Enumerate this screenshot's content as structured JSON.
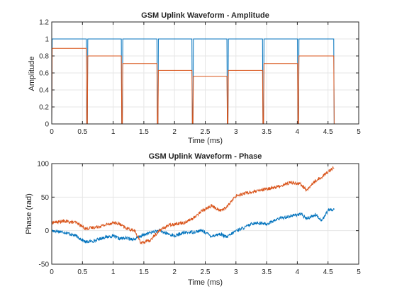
{
  "chart_data": [
    {
      "type": "line",
      "title": "GSM Uplink Waveform - Amplitude",
      "xlabel": "Time (ms)",
      "ylabel": "Amplitude",
      "xlim": [
        0,
        5
      ],
      "ylim": [
        0,
        1.2
      ],
      "xticks": [
        "0",
        "0.5",
        "1",
        "1.5",
        "2",
        "2.5",
        "3",
        "3.5",
        "4",
        "4.5",
        "5"
      ],
      "yticks": [
        "0",
        "0.2",
        "0.4",
        "0.6",
        "0.8",
        "1",
        "1.2"
      ],
      "grid": true,
      "bursts_ms": [
        [
          0.0,
          0.57
        ],
        [
          0.58,
          1.14
        ],
        [
          1.15,
          1.72
        ],
        [
          1.73,
          2.29
        ],
        [
          2.3,
          2.86
        ],
        [
          2.87,
          3.44
        ],
        [
          3.45,
          4.01
        ],
        [
          4.02,
          4.6
        ]
      ],
      "series": [
        {
          "color": "#0072BD",
          "level_per_burst": [
            1.0,
            1.0,
            1.0,
            1.0,
            1.0,
            1.0,
            1.0,
            1.0
          ]
        },
        {
          "color": "#D95319",
          "level_per_burst": [
            0.89,
            0.8,
            0.71,
            0.63,
            0.56,
            0.63,
            0.71,
            0.8
          ]
        }
      ]
    },
    {
      "type": "line",
      "title": "GSM Uplink Waveform - Phase",
      "xlabel": "Time (ms)",
      "ylabel": "Phase (rad)",
      "xlim": [
        0,
        5
      ],
      "ylim": [
        -50,
        100
      ],
      "xticks": [
        "0",
        "0.5",
        "1",
        "1.5",
        "2",
        "2.5",
        "3",
        "3.5",
        "4",
        "4.5",
        "5"
      ],
      "yticks": [
        "-50",
        "0",
        "50",
        "100"
      ],
      "grid": true,
      "series": [
        {
          "color": "#0072BD",
          "x": [
            0,
            0.2,
            0.4,
            0.55,
            0.7,
            0.85,
            1.0,
            1.1,
            1.2,
            1.35,
            1.45,
            1.6,
            1.75,
            1.9,
            2.0,
            2.15,
            2.3,
            2.45,
            2.6,
            2.75,
            2.85,
            3.0,
            3.15,
            3.3,
            3.5,
            3.7,
            3.9,
            4.05,
            4.15,
            4.3,
            4.4,
            4.5,
            4.6
          ],
          "y": [
            0,
            -2,
            -8,
            -17,
            -15,
            -10,
            -8,
            -12,
            -11,
            -13,
            -8,
            -3,
            0,
            -5,
            -8,
            -3,
            -2,
            0,
            -8,
            -5,
            -10,
            0,
            5,
            12,
            10,
            18,
            22,
            25,
            18,
            24,
            15,
            30,
            32
          ]
        },
        {
          "color": "#D95319",
          "x": [
            0,
            0.2,
            0.4,
            0.55,
            0.7,
            0.85,
            1.0,
            1.1,
            1.2,
            1.35,
            1.45,
            1.6,
            1.75,
            1.9,
            2.0,
            2.15,
            2.3,
            2.45,
            2.6,
            2.75,
            2.85,
            3.0,
            3.15,
            3.3,
            3.5,
            3.7,
            3.9,
            4.05,
            4.15,
            4.3,
            4.4,
            4.5,
            4.6
          ],
          "y": [
            12,
            14,
            12,
            3,
            5,
            8,
            12,
            10,
            4,
            0,
            -18,
            -15,
            0,
            8,
            10,
            12,
            18,
            30,
            37,
            30,
            35,
            52,
            56,
            58,
            62,
            66,
            72,
            70,
            60,
            75,
            80,
            88,
            95
          ]
        }
      ]
    }
  ]
}
